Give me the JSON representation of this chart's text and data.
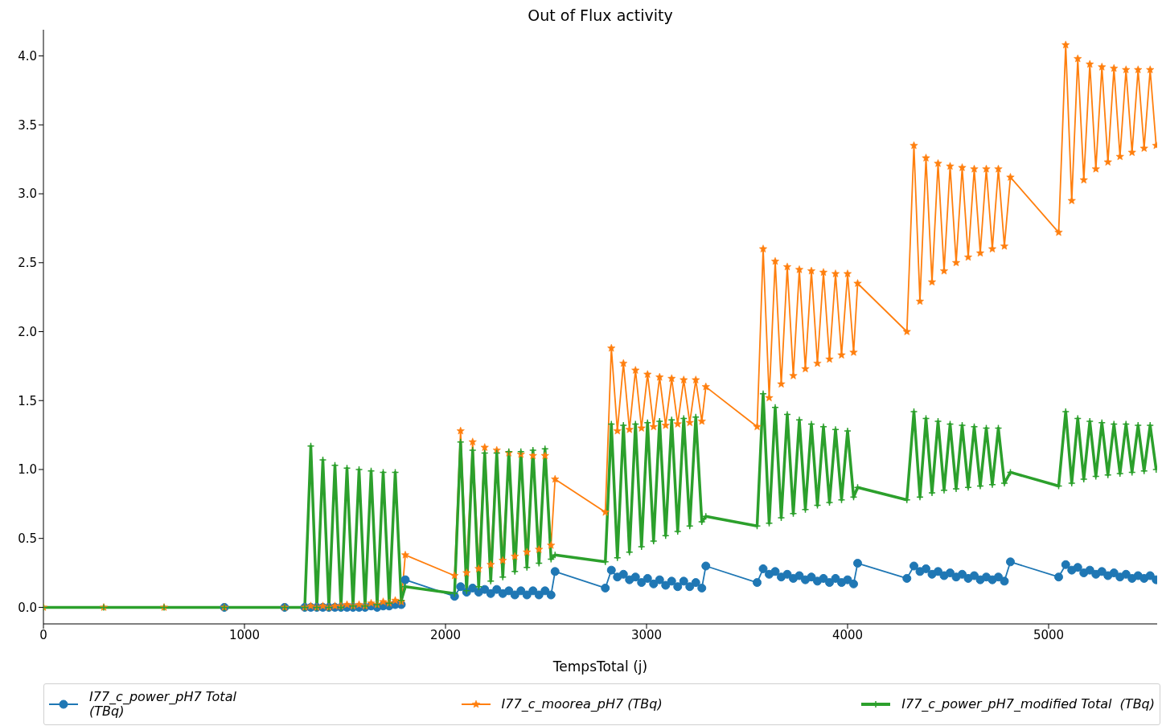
{
  "chart_data": {
    "type": "line",
    "title": "Out of Flux activity",
    "xlabel": "TempsTotal (j)",
    "xlim": [
      0,
      5540
    ],
    "xticks": [
      0,
      1000,
      2000,
      3000,
      4000,
      5000
    ],
    "ylim": [
      -0.12,
      4.19
    ],
    "yticks": [
      {
        "value": 0,
        "label": "0.0"
      },
      {
        "value": 0.5,
        "label": "0.5"
      },
      {
        "value": 1,
        "label": "1.0"
      },
      {
        "value": 1.5,
        "label": "1.5"
      },
      {
        "value": 2,
        "label": "2.0"
      },
      {
        "value": 2.5,
        "label": "2.5"
      },
      {
        "value": 3,
        "label": "3.0"
      },
      {
        "value": 3.5,
        "label": "3.5"
      },
      {
        "value": 4,
        "label": "4.0"
      }
    ],
    "legend": "bottom",
    "x": [
      0,
      300,
      600,
      900,
      1200,
      1300,
      1330,
      1360,
      1390,
      1420,
      1450,
      1480,
      1510,
      1540,
      1570,
      1600,
      1630,
      1660,
      1690,
      1720,
      1750,
      1780,
      1800,
      2045,
      2075,
      2105,
      2135,
      2165,
      2195,
      2225,
      2255,
      2285,
      2315,
      2345,
      2375,
      2405,
      2435,
      2465,
      2495,
      2525,
      2545,
      2795,
      2825,
      2855,
      2885,
      2915,
      2945,
      2975,
      3005,
      3035,
      3065,
      3095,
      3125,
      3155,
      3185,
      3215,
      3245,
      3275,
      3295,
      3550,
      3580,
      3610,
      3640,
      3670,
      3700,
      3730,
      3760,
      3790,
      3820,
      3850,
      3880,
      3910,
      3940,
      3970,
      4000,
      4030,
      4050,
      4295,
      4330,
      4360,
      4390,
      4420,
      4450,
      4480,
      4510,
      4540,
      4570,
      4600,
      4630,
      4660,
      4690,
      4720,
      4750,
      4780,
      4810,
      5050,
      5085,
      5115,
      5145,
      5175,
      5205,
      5235,
      5265,
      5295,
      5325,
      5355,
      5385,
      5415,
      5445,
      5475,
      5505,
      5535
    ],
    "series": [
      {
        "name": "I77_c_power_pH7 Total (TBq)",
        "color": "#1f77b4",
        "marker": "circle",
        "values": [
          null,
          null,
          null,
          0,
          0,
          0,
          0,
          0,
          0,
          0,
          0,
          0,
          0,
          0,
          0,
          0,
          0.01,
          0,
          0.01,
          0.01,
          0.02,
          0.02,
          0.2,
          0.08,
          0.15,
          0.11,
          0.14,
          0.11,
          0.13,
          0.1,
          0.13,
          0.1,
          0.12,
          0.09,
          0.12,
          0.09,
          0.12,
          0.09,
          0.12,
          0.09,
          0.26,
          0.14,
          0.27,
          0.22,
          0.24,
          0.2,
          0.22,
          0.18,
          0.21,
          0.17,
          0.2,
          0.16,
          0.19,
          0.15,
          0.19,
          0.15,
          0.18,
          0.14,
          0.3,
          0.18,
          0.28,
          0.24,
          0.26,
          0.22,
          0.24,
          0.21,
          0.23,
          0.2,
          0.22,
          0.19,
          0.21,
          0.18,
          0.21,
          0.18,
          0.2,
          0.17,
          0.32,
          0.21,
          0.3,
          0.26,
          0.28,
          0.24,
          0.26,
          0.23,
          0.25,
          0.22,
          0.24,
          0.21,
          0.23,
          0.2,
          0.22,
          0.2,
          0.22,
          0.19,
          0.33,
          0.22,
          0.31,
          0.27,
          0.29,
          0.25,
          0.27,
          0.24,
          0.26,
          0.23,
          0.25,
          0.22,
          0.24,
          0.21,
          0.23,
          0.21,
          0.23,
          0.2
        ]
      },
      {
        "name": "I77_c_moorea_pH7 (TBq)",
        "color": "#ff7f0e",
        "marker": "star",
        "values": [
          0,
          0,
          0,
          0,
          0,
          0,
          0.01,
          0,
          0.01,
          0,
          0.01,
          0.01,
          0.02,
          0.01,
          0.02,
          0.01,
          0.03,
          0.02,
          0.04,
          0.03,
          0.05,
          0.04,
          0.38,
          0.23,
          1.28,
          0.25,
          1.2,
          0.28,
          1.16,
          0.31,
          1.14,
          0.34,
          1.12,
          0.37,
          1.11,
          0.4,
          1.1,
          0.42,
          1.1,
          0.45,
          0.93,
          0.69,
          1.88,
          1.28,
          1.77,
          1.29,
          1.72,
          1.3,
          1.69,
          1.31,
          1.67,
          1.32,
          1.66,
          1.33,
          1.65,
          1.34,
          1.65,
          1.35,
          1.6,
          1.31,
          2.6,
          1.52,
          2.51,
          1.62,
          2.47,
          1.68,
          2.45,
          1.73,
          2.44,
          1.77,
          2.43,
          1.8,
          2.42,
          1.83,
          2.42,
          1.85,
          2.35,
          2.0,
          3.35,
          2.22,
          3.26,
          2.36,
          3.22,
          2.44,
          3.2,
          2.5,
          3.19,
          2.54,
          3.18,
          2.57,
          3.18,
          2.6,
          3.18,
          2.62,
          3.12,
          2.72,
          4.08,
          2.95,
          3.98,
          3.1,
          3.94,
          3.18,
          3.92,
          3.23,
          3.91,
          3.27,
          3.9,
          3.3,
          3.9,
          3.33,
          3.9,
          3.35
        ]
      },
      {
        "name": "I77_c_power_pH7_modified Total  (TBq)",
        "color": "#2ca02c",
        "marker": "cross",
        "values": [
          0,
          0,
          0,
          0,
          0,
          0,
          1.17,
          0,
          1.07,
          0,
          1.03,
          0,
          1.01,
          0.01,
          1.0,
          0.01,
          0.99,
          0.02,
          0.98,
          0.03,
          0.98,
          0.05,
          0.15,
          0.1,
          1.2,
          0.12,
          1.14,
          0.15,
          1.12,
          0.19,
          1.12,
          0.22,
          1.13,
          0.26,
          1.13,
          0.29,
          1.14,
          0.32,
          1.15,
          0.35,
          0.38,
          0.33,
          1.33,
          0.36,
          1.32,
          0.4,
          1.33,
          0.44,
          1.34,
          0.48,
          1.35,
          0.52,
          1.36,
          0.55,
          1.37,
          0.59,
          1.38,
          0.62,
          0.66,
          0.59,
          1.55,
          0.61,
          1.45,
          0.65,
          1.4,
          0.68,
          1.36,
          0.71,
          1.33,
          0.74,
          1.31,
          0.76,
          1.29,
          0.78,
          1.28,
          0.8,
          0.87,
          0.78,
          1.42,
          0.8,
          1.37,
          0.83,
          1.35,
          0.85,
          1.33,
          0.86,
          1.32,
          0.87,
          1.31,
          0.88,
          1.3,
          0.89,
          1.3,
          0.9,
          0.98,
          0.88,
          1.42,
          0.9,
          1.37,
          0.93,
          1.35,
          0.95,
          1.34,
          0.96,
          1.33,
          0.97,
          1.33,
          0.98,
          1.32,
          0.99,
          1.32,
          1.0
        ]
      }
    ]
  }
}
